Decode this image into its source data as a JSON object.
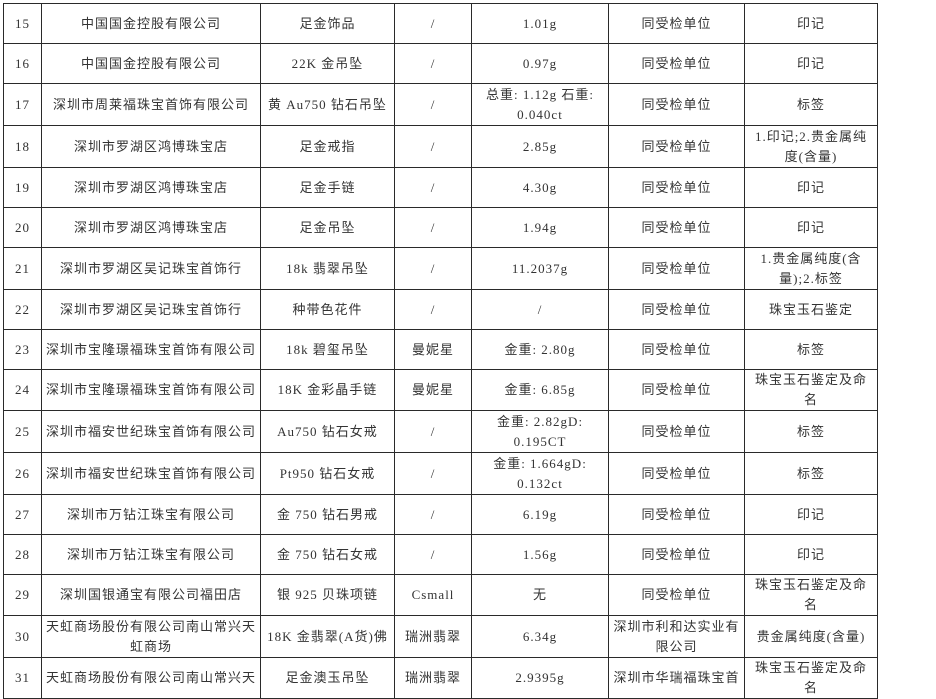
{
  "table": {
    "rows": [
      {
        "no": "15",
        "company": "中国国金控股有限公司",
        "product": "足金饰品",
        "brand": "/",
        "weight": "1.01g",
        "manufacturer": "同受检单位",
        "item": "印记"
      },
      {
        "no": "16",
        "company": "中国国金控股有限公司",
        "product": "22K 金吊坠",
        "brand": "/",
        "weight": "0.97g",
        "manufacturer": "同受检单位",
        "item": "印记"
      },
      {
        "no": "17",
        "company": "深圳市周莱福珠宝首饰有限公司",
        "product": "黄 Au750 钻石吊坠",
        "brand": "/",
        "weight": "总重: 1.12g 石重: 0.040ct",
        "manufacturer": "同受检单位",
        "item": "标签"
      },
      {
        "no": "18",
        "company": "深圳市罗湖区鸿博珠宝店",
        "product": "足金戒指",
        "brand": "/",
        "weight": "2.85g",
        "manufacturer": "同受检单位",
        "item": "1.印记;2.贵金属纯度(含量)"
      },
      {
        "no": "19",
        "company": "深圳市罗湖区鸿博珠宝店",
        "product": "足金手链",
        "brand": "/",
        "weight": "4.30g",
        "manufacturer": "同受检单位",
        "item": "印记"
      },
      {
        "no": "20",
        "company": "深圳市罗湖区鸿博珠宝店",
        "product": "足金吊坠",
        "brand": "/",
        "weight": "1.94g",
        "manufacturer": "同受检单位",
        "item": "印记"
      },
      {
        "no": "21",
        "company": "深圳市罗湖区吴记珠宝首饰行",
        "product": "18k 翡翠吊坠",
        "brand": "/",
        "weight": "11.2037g",
        "manufacturer": "同受检单位",
        "item": "1.贵金属纯度(含量);2.标签"
      },
      {
        "no": "22",
        "company": "深圳市罗湖区吴记珠宝首饰行",
        "product": "种带色花件",
        "brand": "/",
        "weight": "/",
        "manufacturer": "同受检单位",
        "item": "珠宝玉石鉴定"
      },
      {
        "no": "23",
        "company": "深圳市宝隆璟福珠宝首饰有限公司",
        "product": "18k 碧玺吊坠",
        "brand": "曼妮星",
        "weight": "金重: 2.80g",
        "manufacturer": "同受检单位",
        "item": "标签"
      },
      {
        "no": "24",
        "company": "深圳市宝隆璟福珠宝首饰有限公司",
        "product": "18K 金彩晶手链",
        "brand": "曼妮星",
        "weight": "金重: 6.85g",
        "manufacturer": "同受检单位",
        "item": "珠宝玉石鉴定及命名"
      },
      {
        "no": "25",
        "company": "深圳市福安世纪珠宝首饰有限公司",
        "product": "Au750 钻石女戒",
        "brand": "/",
        "weight": "金重: 2.82gD: 0.195CT",
        "manufacturer": "同受检单位",
        "item": "标签"
      },
      {
        "no": "26",
        "company": "深圳市福安世纪珠宝首饰有限公司",
        "product": "Pt950 钻石女戒",
        "brand": "/",
        "weight": "金重: 1.664gD: 0.132ct",
        "manufacturer": "同受检单位",
        "item": "标签"
      },
      {
        "no": "27",
        "company": "深圳市万钻江珠宝有限公司",
        "product": "金 750 钻石男戒",
        "brand": "/",
        "weight": "6.19g",
        "manufacturer": "同受检单位",
        "item": "印记"
      },
      {
        "no": "28",
        "company": "深圳市万钻江珠宝有限公司",
        "product": "金 750 钻石女戒",
        "brand": "/",
        "weight": "1.56g",
        "manufacturer": "同受检单位",
        "item": "印记"
      },
      {
        "no": "29",
        "company": "深圳国银通宝有限公司福田店",
        "product": "银 925 贝珠项链",
        "brand": "Csmall",
        "weight": "无",
        "manufacturer": "同受检单位",
        "item": "珠宝玉石鉴定及命名"
      },
      {
        "no": "30",
        "company": "天虹商场股份有限公司南山常兴天虹商场",
        "product": "18K 金翡翠(A货)佛",
        "brand": "瑞洲翡翠",
        "weight": "6.34g",
        "manufacturer": "深圳市利和达实业有限公司",
        "item": "贵金属纯度(含量)"
      },
      {
        "no": "31",
        "company": "天虹商场股份有限公司南山常兴天",
        "product": "足金澳玉吊坠",
        "brand": "瑞洲翡翠",
        "weight": "2.9395g",
        "manufacturer": "深圳市华瑞福珠宝首",
        "item": "珠宝玉石鉴定及命名"
      }
    ]
  }
}
